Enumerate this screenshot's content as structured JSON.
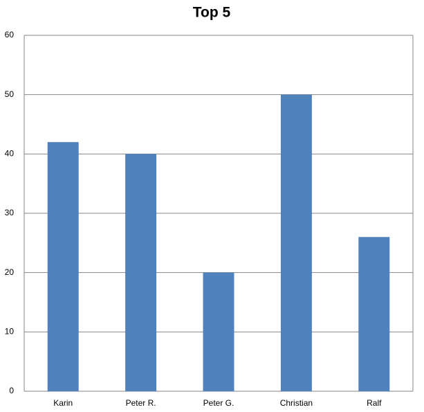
{
  "chart_data": {
    "type": "bar",
    "title": "Top 5",
    "categories": [
      "Karin",
      "Peter R.",
      "Peter G.",
      "Christian",
      "Ralf"
    ],
    "values": [
      42,
      40,
      20,
      50,
      26
    ],
    "color": "#4f81bd",
    "ylim": [
      0,
      60
    ],
    "yticks": [
      0,
      10,
      20,
      30,
      40,
      50,
      60
    ],
    "grid": true
  }
}
